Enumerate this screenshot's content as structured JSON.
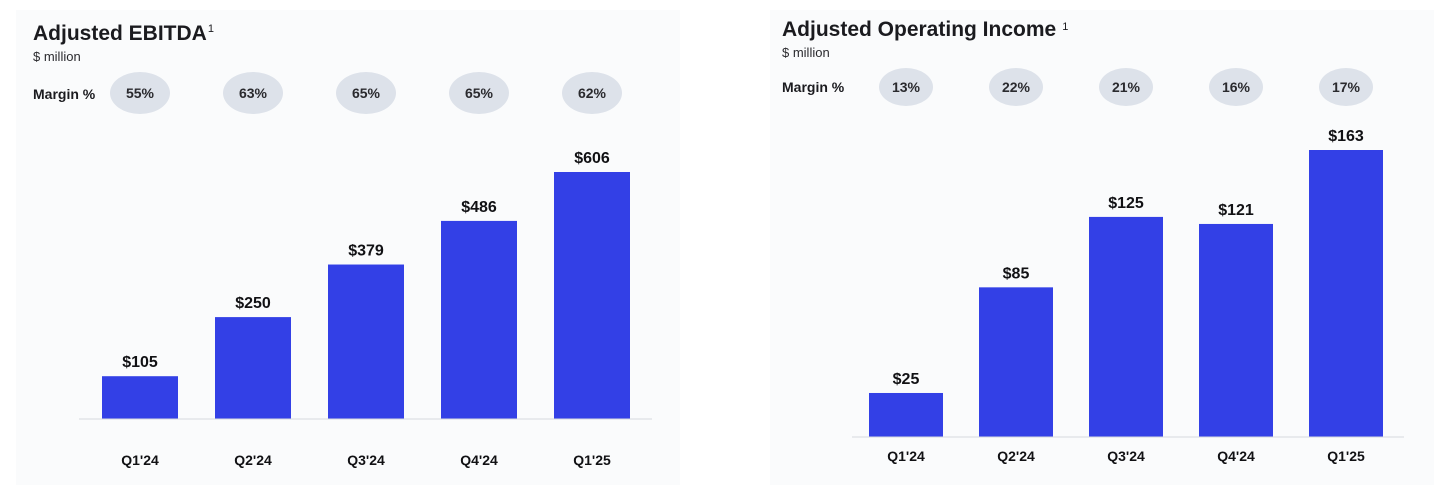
{
  "chart_data": [
    {
      "type": "bar",
      "title": "Adjusted EBITDA",
      "title_superscript": "1",
      "subtitle": "$ million",
      "margin_label": "Margin %",
      "categories": [
        "Q1'24",
        "Q2'24",
        "Q3'24",
        "Q4'24",
        "Q1'25"
      ],
      "values": [
        105,
        250,
        379,
        486,
        606
      ],
      "value_labels": [
        "$105",
        "$250",
        "$379",
        "$486",
        "$606"
      ],
      "margins": [
        "55%",
        "63%",
        "65%",
        "65%",
        "62%"
      ],
      "ylim": [
        0,
        606
      ],
      "bar_color": "#3340e6"
    },
    {
      "type": "bar",
      "title": "Adjusted Operating Income",
      "title_superscript": "1",
      "subtitle": "$ million",
      "margin_label": "Margin %",
      "categories": [
        "Q1'24",
        "Q2'24",
        "Q3'24",
        "Q4'24",
        "Q1'25"
      ],
      "values": [
        25,
        85,
        125,
        121,
        163
      ],
      "value_labels": [
        "$25",
        "$85",
        "$125",
        "$121",
        "$163"
      ],
      "margins": [
        "13%",
        "22%",
        "21%",
        "16%",
        "17%"
      ],
      "ylim": [
        0,
        163
      ],
      "bar_color": "#3340e6"
    }
  ]
}
